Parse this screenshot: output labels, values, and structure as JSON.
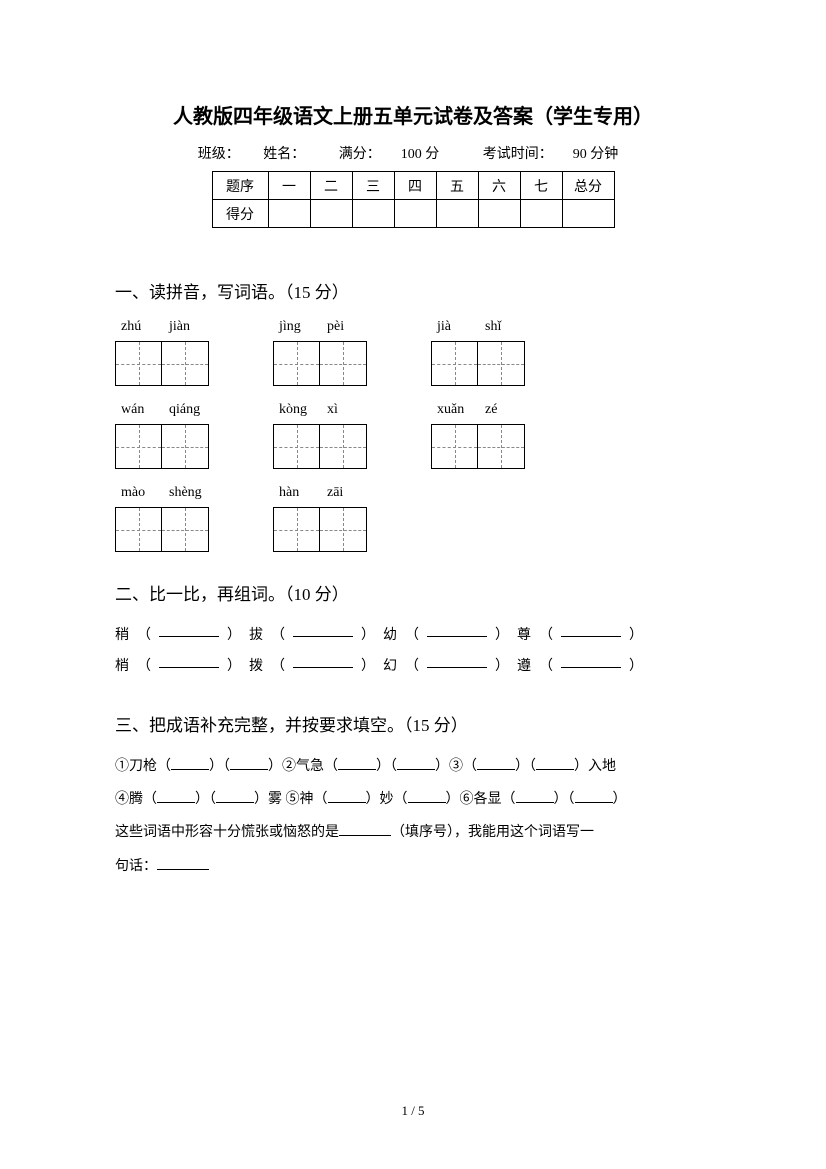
{
  "title": "人教版四年级语文上册五单元试卷及答案（学生专用）",
  "meta": {
    "class_label": "班级：",
    "name_label": "姓名：",
    "fullscore_label": "满分：",
    "fullscore_value": "100 分",
    "time_label": "考试时间：",
    "time_value": "90 分钟"
  },
  "score_table": {
    "row1_label": "题序",
    "row2_label": "得分",
    "cols": [
      "一",
      "二",
      "三",
      "四",
      "五",
      "六",
      "七"
    ],
    "total_label": "总分"
  },
  "section1": {
    "heading": "一、读拼音，写词语。（15 分）",
    "items": [
      {
        "p1": "zhú",
        "p2": "jiàn"
      },
      {
        "p1": "jìng",
        "p2": "pèi"
      },
      {
        "p1": "jià",
        "p2": "shǐ"
      },
      {
        "p1": "wán",
        "p2": "qiáng"
      },
      {
        "p1": "kòng",
        "p2": "xì"
      },
      {
        "p1": "xuǎn",
        "p2": "zé"
      },
      {
        "p1": "mào",
        "p2": "shèng"
      },
      {
        "p1": "hàn",
        "p2": "zāi"
      }
    ]
  },
  "section2": {
    "heading": "二、比一比，再组词。（10 分）",
    "pairs": [
      [
        "稍",
        "拔",
        "幼",
        "尊"
      ],
      [
        "梢",
        "拨",
        "幻",
        "遵"
      ]
    ]
  },
  "section3": {
    "heading": "三、把成语补充完整，并按要求填空。（15 分）",
    "line1_a": "①刀枪（",
    "line1_b": "）（",
    "line1_c": "）②气急（",
    "line1_d": "）（",
    "line1_e": "）③（",
    "line1_f": "）（",
    "line1_g": "）入地",
    "line2_a": "④腾（",
    "line2_b": "）（",
    "line2_c": "）雾 ⑤神（",
    "line2_d": "）妙（",
    "line2_e": "）⑥各显（",
    "line2_f": "）（",
    "line2_g": "）",
    "line3_a": "这些词语中形容十分慌张或恼怒的是",
    "line3_b": "（填序号），我能用这个词语写一",
    "line4_a": "句话：",
    "line4_blank": ""
  },
  "page_number": "1 / 5"
}
